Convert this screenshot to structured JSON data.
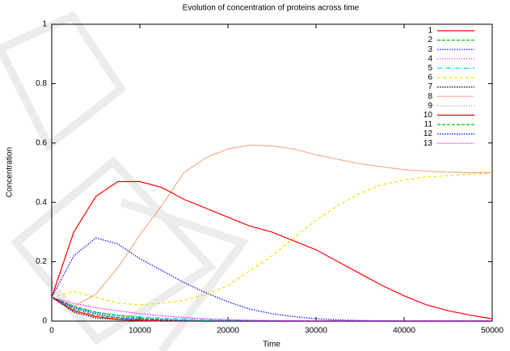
{
  "chart_data": {
    "type": "line",
    "title": "Evolution of concentration of proteins across time",
    "xlabel": "Time",
    "ylabel": "Concentration",
    "x": [
      0,
      2500,
      5000,
      7500,
      10000,
      12500,
      15000,
      17500,
      20000,
      22500,
      25000,
      27500,
      30000,
      32500,
      35000,
      37500,
      40000,
      42500,
      45000,
      47500,
      50000
    ],
    "xlim": [
      0,
      50000
    ],
    "xticks": [
      0,
      10000,
      20000,
      30000,
      40000,
      50000
    ],
    "ylim": [
      0,
      1
    ],
    "yticks": [
      0,
      0.2,
      0.4,
      0.6,
      0.8,
      1
    ],
    "legend": "top-right",
    "series": [
      {
        "name": "1",
        "color": "#ff0000",
        "dash": "none",
        "values": [
          0.08,
          0.3,
          0.42,
          0.47,
          0.47,
          0.45,
          0.41,
          0.38,
          0.35,
          0.32,
          0.3,
          0.27,
          0.24,
          0.2,
          0.16,
          0.12,
          0.085,
          0.055,
          0.035,
          0.02,
          0.008
        ]
      },
      {
        "name": "2",
        "color": "#00c000",
        "dash": "4,2",
        "values": [
          0.08,
          0.04,
          0.02,
          0.01,
          0.005,
          0.002,
          0.001,
          0,
          0,
          0,
          0,
          0,
          0,
          0,
          0,
          0,
          0,
          0,
          0,
          0,
          0
        ]
      },
      {
        "name": "3",
        "color": "#0000ff",
        "dash": "1.5,1.5",
        "values": [
          0.08,
          0.22,
          0.28,
          0.26,
          0.21,
          0.17,
          0.13,
          0.095,
          0.065,
          0.04,
          0.025,
          0.015,
          0.008,
          0.004,
          0.002,
          0.001,
          0,
          0,
          0,
          0,
          0
        ]
      },
      {
        "name": "4",
        "color": "#ff00ff",
        "dash": "1,2",
        "values": [
          0.08,
          0.05,
          0.03,
          0.02,
          0.012,
          0.007,
          0.004,
          0.002,
          0.001,
          0,
          0,
          0,
          0,
          0,
          0,
          0,
          0,
          0,
          0,
          0,
          0
        ]
      },
      {
        "name": "5",
        "color": "#00e0ff",
        "dash": "6,2,1,2",
        "values": [
          0.08,
          0.045,
          0.03,
          0.02,
          0.015,
          0.01,
          0.007,
          0.005,
          0.003,
          0.002,
          0.001,
          0,
          0,
          0,
          0,
          0,
          0,
          0,
          0,
          0,
          0
        ]
      },
      {
        "name": "6",
        "color": "#f0e000",
        "dash": "4,3",
        "values": [
          0.08,
          0.1,
          0.08,
          0.06,
          0.055,
          0.06,
          0.07,
          0.09,
          0.12,
          0.17,
          0.22,
          0.28,
          0.34,
          0.39,
          0.43,
          0.46,
          0.475,
          0.485,
          0.49,
          0.495,
          0.498
        ]
      },
      {
        "name": "7",
        "color": "#000000",
        "dash": "1.5,1.5",
        "values": [
          0.08,
          0.03,
          0.01,
          0.005,
          0.002,
          0,
          0,
          0,
          0,
          0,
          0,
          0,
          0,
          0,
          0,
          0,
          0,
          0,
          0,
          0,
          0
        ]
      },
      {
        "name": "8",
        "color": "#e06020",
        "dash": "1,1",
        "values": [
          0.08,
          0.05,
          0.09,
          0.18,
          0.29,
          0.39,
          0.5,
          0.55,
          0.58,
          0.593,
          0.59,
          0.58,
          0.56,
          0.545,
          0.53,
          0.52,
          0.51,
          0.505,
          0.502,
          0.5,
          0.5
        ]
      },
      {
        "name": "9",
        "color": "#909090",
        "dash": "1,2",
        "values": [
          0.08,
          0.04,
          0.02,
          0.01,
          0.005,
          0.002,
          0.001,
          0,
          0,
          0,
          0,
          0,
          0,
          0,
          0,
          0,
          0,
          0,
          0,
          0,
          0
        ]
      },
      {
        "name": "10",
        "color": "#ff0000",
        "dash": "none",
        "values": [
          0.08,
          0.035,
          0.015,
          0.006,
          0.002,
          0,
          0,
          0,
          0,
          0,
          0,
          0,
          0,
          0,
          0,
          0,
          0,
          0,
          0,
          0,
          0
        ]
      },
      {
        "name": "11",
        "color": "#00c000",
        "dash": "4,2",
        "values": [
          0.08,
          0.05,
          0.03,
          0.018,
          0.01,
          0.005,
          0.002,
          0.001,
          0,
          0,
          0,
          0,
          0,
          0,
          0,
          0,
          0,
          0,
          0,
          0,
          0
        ]
      },
      {
        "name": "12",
        "color": "#0000ff",
        "dash": "1.5,1.5",
        "values": [
          0.08,
          0.045,
          0.025,
          0.012,
          0.006,
          0.003,
          0.001,
          0,
          0,
          0,
          0,
          0,
          0,
          0,
          0,
          0,
          0,
          0,
          0,
          0,
          0
        ]
      },
      {
        "name": "13",
        "color": "#ff00ff",
        "dash": "1,1",
        "values": [
          0.08,
          0.06,
          0.045,
          0.035,
          0.025,
          0.018,
          0.012,
          0.008,
          0.005,
          0.003,
          0.002,
          0.001,
          0,
          0,
          0,
          0,
          0,
          0,
          0,
          0,
          0
        ]
      }
    ]
  }
}
